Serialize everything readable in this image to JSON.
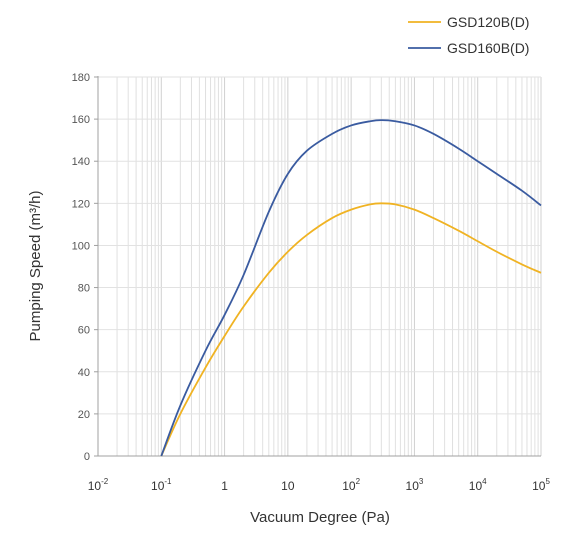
{
  "chart_data": {
    "type": "line",
    "xlabel": "Vacuum Degree (Pa)",
    "ylabel": "Pumping Speed (m³/h)",
    "xscale": "log",
    "xlim": [
      0.01,
      100000
    ],
    "ylim": [
      0,
      180
    ],
    "grid": true,
    "legend_position": "top-right",
    "x_ticks": [
      {
        "base": "10",
        "exp": "-2"
      },
      {
        "base": "10",
        "exp": "-1"
      },
      {
        "base": "1",
        "exp": ""
      },
      {
        "base": "10",
        "exp": ""
      },
      {
        "base": "10",
        "exp": "2"
      },
      {
        "base": "10",
        "exp": "3"
      },
      {
        "base": "10",
        "exp": "4"
      },
      {
        "base": "10",
        "exp": "5"
      }
    ],
    "y_ticks": [
      "0",
      "20",
      "40",
      "60",
      "80",
      "100",
      "120",
      "140",
      "160",
      "180"
    ],
    "series": [
      {
        "name": "GSD120B(D)",
        "color": "#F0B323",
        "x": [
          0.1,
          0.2,
          0.5,
          1,
          2,
          5,
          10,
          20,
          50,
          100,
          200,
          300,
          500,
          1000,
          2000,
          5000,
          10000,
          20000,
          50000,
          100000
        ],
        "y": [
          0,
          20,
          42,
          57,
          71,
          87,
          97,
          105,
          113,
          117,
          119.5,
          120,
          119.5,
          117,
          113,
          107,
          102,
          97,
          91,
          87
        ]
      },
      {
        "name": "GSD160B(D)",
        "color": "#3A5BA0",
        "x": [
          0.1,
          0.2,
          0.5,
          1,
          2,
          5,
          10,
          20,
          50,
          100,
          200,
          300,
          500,
          1000,
          2000,
          5000,
          10000,
          20000,
          50000,
          100000
        ],
        "y": [
          0,
          24,
          50,
          67,
          86,
          116,
          134,
          145,
          153,
          157,
          159,
          159.5,
          159,
          157,
          153,
          146,
          140,
          134,
          126,
          119
        ]
      }
    ]
  }
}
